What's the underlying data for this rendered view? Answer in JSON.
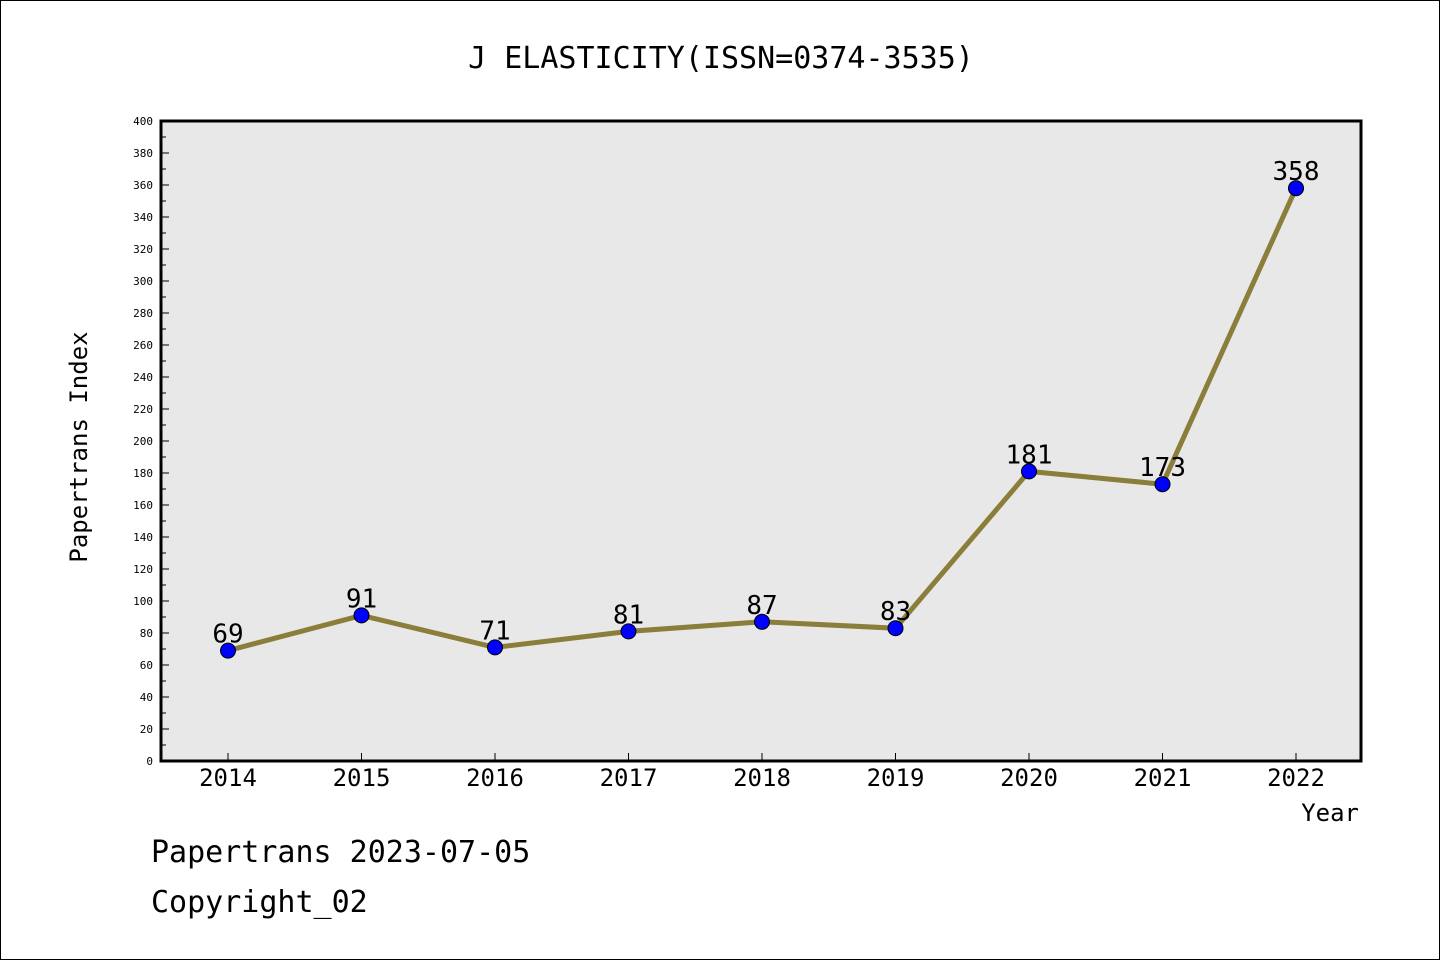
{
  "chart_data": {
    "type": "line",
    "title": "J ELASTICITY(ISSN=0374-3535)",
    "xlabel": "Year",
    "ylabel": "Papertrans Index",
    "x": [
      "2014",
      "2015",
      "2016",
      "2017",
      "2018",
      "2019",
      "2020",
      "2021",
      "2022"
    ],
    "series": [
      {
        "values": [
          69,
          91,
          71,
          81,
          87,
          83,
          181,
          173,
          358
        ]
      }
    ],
    "data_labels": [
      "69",
      "91",
      "71",
      "81",
      "87",
      "83",
      "181",
      "173",
      "358"
    ],
    "ylim": [
      0,
      400
    ],
    "yticks": [
      0,
      20,
      40,
      60,
      80,
      100,
      120,
      140,
      160,
      180,
      200,
      220,
      240,
      260,
      280,
      300,
      320,
      340,
      360,
      380,
      400
    ],
    "grid": false,
    "legend": "none",
    "colors": {
      "plot_background": "#e8e8e8",
      "line": "#8b7d3a",
      "marker": "#0000ff"
    }
  },
  "footer": {
    "line1": "Papertrans 2023-07-05",
    "line2": "Copyright_02"
  }
}
